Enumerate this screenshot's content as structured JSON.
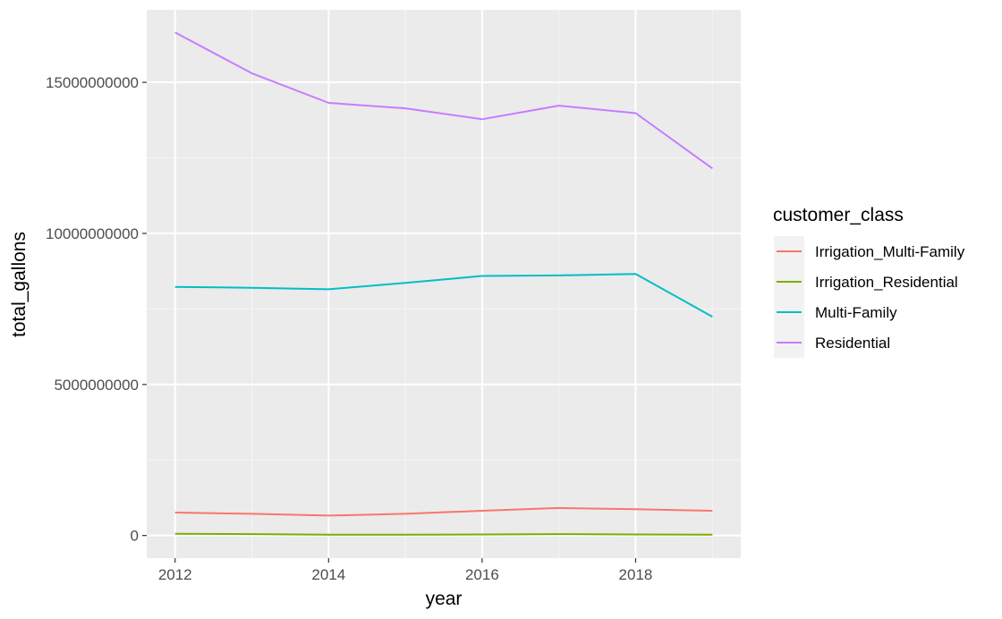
{
  "chart_data": {
    "type": "line",
    "xlabel": "year",
    "ylabel": "total_gallons",
    "x": [
      2012,
      2013,
      2014,
      2015,
      2016,
      2017,
      2018,
      2019
    ],
    "x_ticks": [
      2012,
      2014,
      2016,
      2018
    ],
    "x_tick_labels": [
      "2012",
      "2014",
      "2016",
      "2018"
    ],
    "y_ticks": [
      0,
      5000000000,
      10000000000,
      15000000000
    ],
    "y_tick_labels": [
      "0",
      "5000000000",
      "10000000000",
      "15000000000"
    ],
    "xlim": [
      2011.63,
      2019.37
    ],
    "ylim": [
      -750000000,
      17400000000
    ],
    "grid": true,
    "legend": {
      "title": "customer_class",
      "position": "right"
    },
    "series": [
      {
        "name": "Irrigation_Multi-Family",
        "color": "#F8766D",
        "values": [
          760000000,
          720000000,
          660000000,
          720000000,
          820000000,
          910000000,
          870000000,
          820000000
        ]
      },
      {
        "name": "Irrigation_Residential",
        "color": "#7CAE00",
        "values": [
          55000000,
          45000000,
          30000000,
          28000000,
          35000000,
          45000000,
          35000000,
          25000000
        ]
      },
      {
        "name": "Multi-Family",
        "color": "#00BFC4",
        "values": [
          8230000000,
          8200000000,
          8150000000,
          8360000000,
          8590000000,
          8610000000,
          8660000000,
          7240000000
        ]
      },
      {
        "name": "Residential",
        "color": "#C77CFF",
        "values": [
          16650000000,
          15300000000,
          14320000000,
          14140000000,
          13780000000,
          14230000000,
          13980000000,
          12150000000
        ]
      }
    ]
  }
}
